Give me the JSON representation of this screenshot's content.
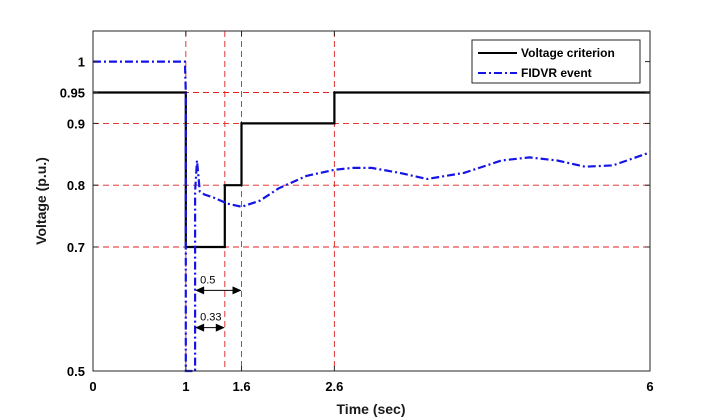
{
  "chart_data": {
    "type": "line",
    "xlabel": "Time (sec)",
    "ylabel": "Voltage (p.u.)",
    "xlim": [
      0,
      6
    ],
    "ylim": [
      0.5,
      1.05
    ],
    "xticks": [
      0,
      1,
      1.6,
      2.6,
      6
    ],
    "xtick_labels": [
      "0",
      "1",
      "1.6",
      "2.6",
      "6"
    ],
    "yticks": [
      0.5,
      0.7,
      0.8,
      0.9,
      0.95,
      1
    ],
    "ytick_labels": [
      "0.5",
      "0.7",
      "0.8",
      "0.9",
      "0.95",
      "1"
    ],
    "legend_position": "top-right",
    "series": [
      {
        "name": "Voltage criterion",
        "color": "#000000",
        "style": "solid",
        "x": [
          0,
          1,
          1,
          1.12,
          1.12,
          1.42,
          1.42,
          1.6,
          1.6,
          2.6,
          2.6,
          6
        ],
        "y": [
          0.95,
          0.95,
          0.7,
          0.7,
          0.7,
          0.7,
          0.8,
          0.8,
          0.9,
          0.9,
          0.95,
          0.95
        ]
      },
      {
        "name": "FIDVR event",
        "color": "#1414e6",
        "style": "dashdot",
        "x": [
          0,
          0.99,
          1.0,
          1.0,
          1.1,
          1.1,
          1.12,
          1.15,
          1.2,
          1.3,
          1.45,
          1.6,
          1.8,
          2.0,
          2.3,
          2.6,
          2.8,
          3.0,
          3.3,
          3.6,
          4.0,
          4.4,
          4.7,
          5.0,
          5.3,
          5.6,
          6.0
        ],
        "y": [
          1.0,
          1.0,
          0.95,
          0.5,
          0.5,
          0.79,
          0.84,
          0.79,
          0.785,
          0.78,
          0.77,
          0.765,
          0.775,
          0.795,
          0.815,
          0.825,
          0.828,
          0.828,
          0.82,
          0.81,
          0.82,
          0.84,
          0.845,
          0.84,
          0.83,
          0.832,
          0.853
        ]
      }
    ],
    "reference_lines": {
      "horizontal": [
        0.95,
        0.9,
        0.8,
        0.7
      ],
      "vertical": [
        1.0,
        1.42,
        1.6,
        2.6
      ]
    },
    "annotations": [
      {
        "text": "0.5",
        "x_start": 1.1,
        "x_end": 1.6,
        "y": 0.63
      },
      {
        "text": "0.33",
        "x_start": 1.1,
        "x_end": 1.42,
        "y": 0.57
      }
    ]
  }
}
